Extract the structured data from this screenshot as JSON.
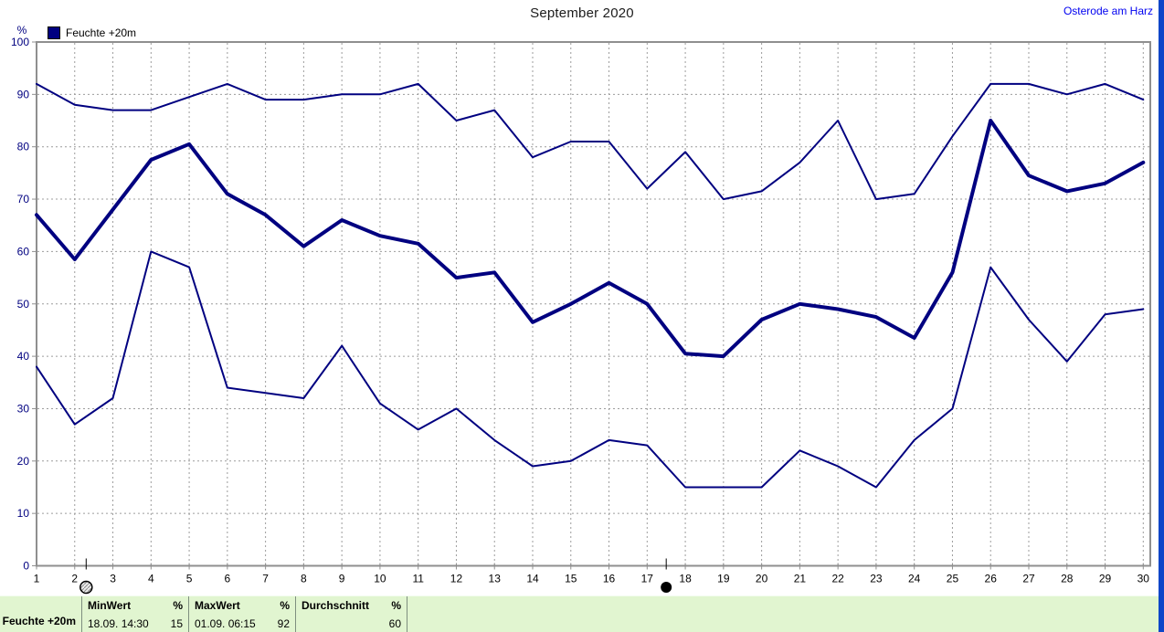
{
  "header": {
    "title": "September 2020",
    "location": "Osterode am Harz"
  },
  "legend": {
    "label": "Feuchte +20m",
    "swatch_color": "#000080"
  },
  "axis": {
    "unit_label": "%"
  },
  "chart_data": {
    "type": "line",
    "title": "September 2020",
    "ylabel": "%",
    "ylim": [
      0,
      100
    ],
    "y_ticks": [
      0,
      10,
      20,
      30,
      40,
      50,
      60,
      70,
      80,
      90,
      100
    ],
    "x": [
      1,
      2,
      3,
      4,
      5,
      6,
      7,
      8,
      9,
      10,
      11,
      12,
      13,
      14,
      15,
      16,
      17,
      18,
      19,
      20,
      21,
      22,
      23,
      24,
      25,
      26,
      27,
      28,
      29,
      30
    ],
    "grid": "dashed",
    "legend_position": "top-left",
    "line_color": "#000080",
    "series": [
      {
        "name": "max",
        "thick": false,
        "values": [
          92,
          88,
          87,
          87,
          89.5,
          92,
          89,
          89,
          90,
          90,
          92,
          85,
          87,
          78,
          81,
          81,
          72,
          79,
          70,
          71.5,
          77,
          85,
          70,
          71,
          82,
          92,
          92,
          90,
          92,
          89
        ]
      },
      {
        "name": "avg",
        "thick": true,
        "values": [
          67,
          58.5,
          68,
          77.5,
          80.5,
          71,
          67,
          61,
          66,
          63,
          61.5,
          55,
          56,
          46.5,
          50,
          54,
          50,
          40.5,
          40,
          47,
          50,
          49,
          47.5,
          43.5,
          56,
          85,
          74.5,
          71.5,
          73,
          77
        ]
      },
      {
        "name": "min",
        "thick": false,
        "values": [
          38,
          27,
          32,
          60,
          57,
          34,
          33,
          32,
          42,
          31,
          26,
          30,
          24,
          19,
          20,
          24,
          23,
          15,
          15,
          15,
          22,
          19,
          15,
          24,
          30,
          57,
          47,
          39,
          48,
          49
        ]
      }
    ]
  },
  "sliders": [
    {
      "style": "hatched",
      "day": 2.3
    },
    {
      "style": "filled",
      "day": 17.5
    }
  ],
  "status_bar": {
    "series_label": "Feuchte +20m",
    "columns": [
      {
        "header": "MinWert",
        "unit": "%",
        "value_text": "18.09. 14:30",
        "value": "15"
      },
      {
        "header": "MaxWert",
        "unit": "%",
        "value_text": "01.09. 06:15",
        "value": "92"
      },
      {
        "header": "Durchschnitt",
        "unit": "%",
        "value_text": "",
        "value": "60"
      }
    ]
  },
  "colors": {
    "series": "#000080",
    "y_axis_labels": "#000080",
    "x_axis_labels": "#000000",
    "axis_frame": "#8f8f8f",
    "grid": "#9c9c9c",
    "location_link": "#0000f0",
    "status_bg": "#e1f5d0",
    "right_edge_bar": "#0c46c8"
  }
}
